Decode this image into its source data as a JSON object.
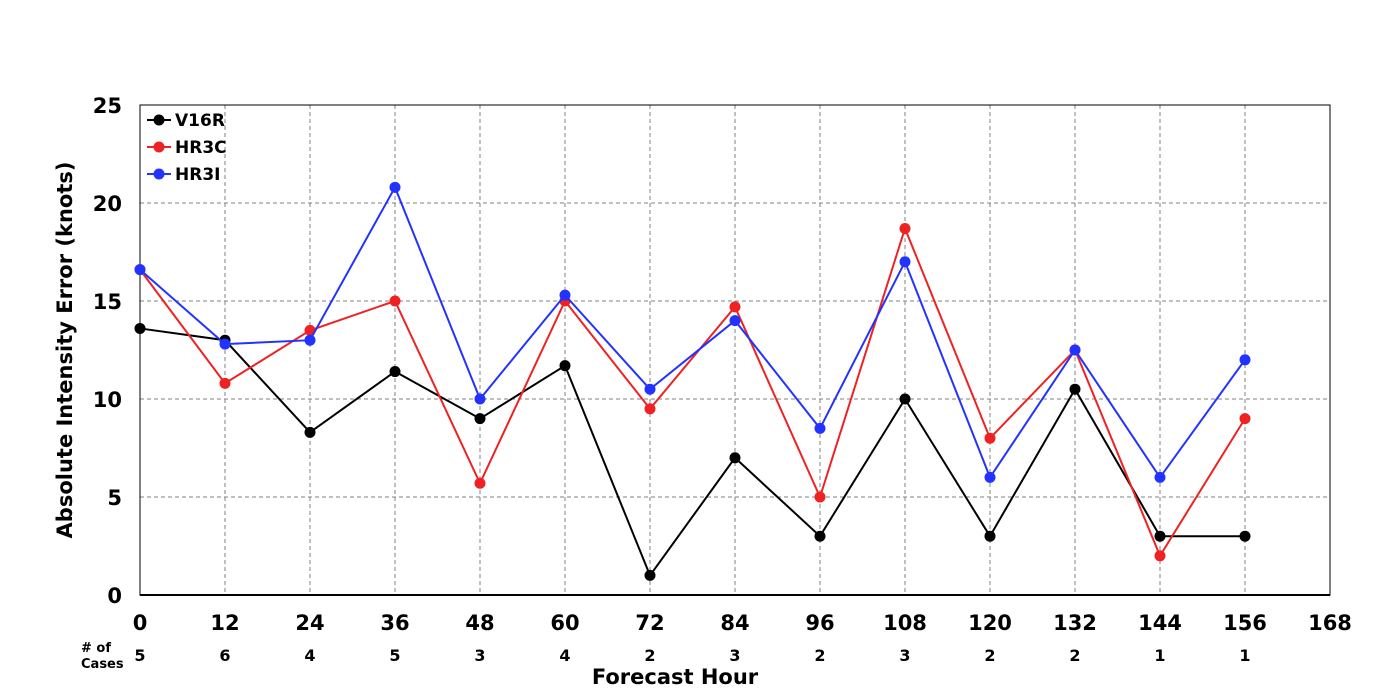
{
  "chart_data": {
    "type": "line",
    "title": "",
    "xlabel": "Forecast Hour",
    "ylabel": "Absolute Intensity Error (knots)",
    "xlim": [
      0,
      168
    ],
    "ylim": [
      0,
      25
    ],
    "x_ticks": [
      0,
      12,
      24,
      36,
      48,
      60,
      72,
      84,
      96,
      108,
      120,
      132,
      144,
      156,
      168
    ],
    "y_ticks": [
      0,
      5,
      10,
      15,
      20,
      25
    ],
    "grid": true,
    "legend_position": "top-left",
    "series": [
      {
        "name": "V16R",
        "color": "#000000",
        "x": [
          0,
          12,
          24,
          36,
          48,
          60,
          72,
          84,
          96,
          108,
          120,
          132,
          144,
          156
        ],
        "values": [
          13.6,
          13.0,
          8.3,
          11.4,
          9.0,
          11.7,
          1.0,
          7.0,
          3.0,
          10.0,
          3.0,
          10.5,
          3.0,
          3.0
        ]
      },
      {
        "name": "HR3C",
        "color": "#ee2222",
        "x": [
          0,
          12,
          24,
          36,
          48,
          60,
          72,
          84,
          96,
          108,
          120,
          132,
          144,
          156
        ],
        "values": [
          16.6,
          10.8,
          13.5,
          15.0,
          5.7,
          15.0,
          9.5,
          14.7,
          5.0,
          18.7,
          8.0,
          12.5,
          2.0,
          9.0
        ]
      },
      {
        "name": "HR3I",
        "color": "#2233ff",
        "x": [
          0,
          12,
          24,
          36,
          48,
          60,
          72,
          84,
          96,
          108,
          120,
          132,
          144,
          156
        ],
        "values": [
          16.6,
          12.8,
          13.0,
          20.8,
          10.0,
          15.3,
          10.5,
          14.0,
          8.5,
          17.0,
          6.0,
          12.5,
          6.0,
          12.0
        ]
      }
    ],
    "cases": {
      "label_line1": "# of",
      "label_line2": "Cases",
      "x": [
        0,
        12,
        24,
        36,
        48,
        60,
        72,
        84,
        96,
        108,
        120,
        132,
        144,
        156
      ],
      "counts": [
        "5",
        "6",
        "4",
        "5",
        "3",
        "4",
        "2",
        "3",
        "2",
        "3",
        "2",
        "2",
        "1",
        "1"
      ]
    }
  }
}
